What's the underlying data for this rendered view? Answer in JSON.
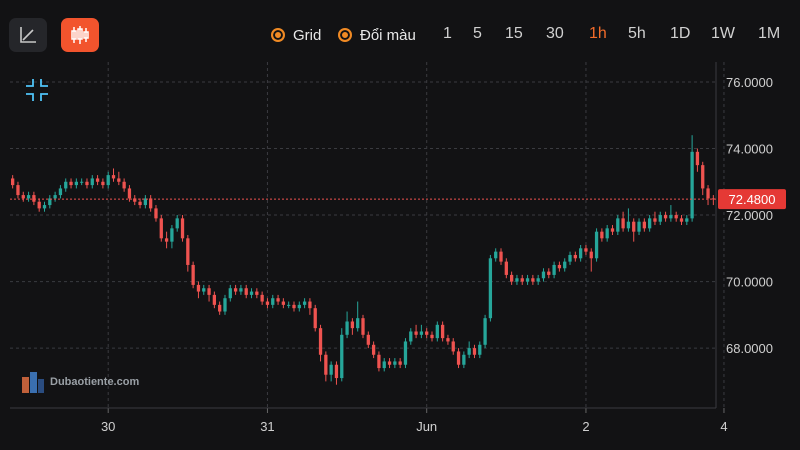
{
  "toolbar": {
    "line_icon": "line-chart-icon",
    "candle_icon": "candlestick-icon",
    "options": [
      {
        "label": "Grid"
      },
      {
        "label": "Đổi màu"
      }
    ],
    "timeframes": [
      "1",
      "5",
      "15",
      "30",
      "1h",
      "5h",
      "1D",
      "1W",
      "1M"
    ],
    "active_timeframe": "1h"
  },
  "watermark": {
    "text": "Dubaotiente.com"
  },
  "colors": {
    "up": "#26a69a",
    "down": "#ef5350",
    "accent": "#f26b2a",
    "grid": "#3a3b40",
    "price_line": "#ef5350"
  },
  "chart_data": {
    "type": "candlestick",
    "y_ticks": [
      "76.0000",
      "74.0000",
      "72.0000",
      "70.0000",
      "68.0000"
    ],
    "y_tick_values": [
      76,
      74,
      72,
      70,
      68
    ],
    "ylim": [
      66.2,
      76.6
    ],
    "x_ticks": [
      "30",
      "31",
      "Jun",
      "2",
      "4"
    ],
    "x_tick_index": [
      18,
      48,
      78,
      108,
      134
    ],
    "current_price": "72.4800",
    "current_price_value": 72.48,
    "grid": true,
    "candles": [
      [
        73.1,
        72.9,
        73.2,
        72.8
      ],
      [
        72.9,
        72.6,
        73.0,
        72.5
      ],
      [
        72.6,
        72.5,
        72.7,
        72.4
      ],
      [
        72.5,
        72.6,
        72.7,
        72.4
      ],
      [
        72.6,
        72.4,
        72.7,
        72.3
      ],
      [
        72.4,
        72.2,
        72.5,
        72.1
      ],
      [
        72.2,
        72.3,
        72.4,
        72.1
      ],
      [
        72.3,
        72.5,
        72.6,
        72.2
      ],
      [
        72.5,
        72.6,
        72.7,
        72.4
      ],
      [
        72.6,
        72.8,
        72.9,
        72.5
      ],
      [
        72.8,
        73.0,
        73.1,
        72.7
      ],
      [
        73.0,
        72.9,
        73.1,
        72.8
      ],
      [
        72.9,
        73.0,
        73.1,
        72.8
      ],
      [
        73.0,
        73.0,
        73.1,
        72.9
      ],
      [
        73.0,
        72.9,
        73.1,
        72.8
      ],
      [
        72.9,
        73.1,
        73.2,
        72.8
      ],
      [
        73.1,
        73.0,
        73.2,
        72.9
      ],
      [
        73.0,
        72.9,
        73.1,
        72.8
      ],
      [
        72.9,
        73.2,
        73.3,
        72.8
      ],
      [
        73.2,
        73.1,
        73.4,
        73.0
      ],
      [
        73.1,
        73.0,
        73.3,
        72.9
      ],
      [
        73.0,
        72.8,
        73.1,
        72.7
      ],
      [
        72.8,
        72.5,
        72.9,
        72.4
      ],
      [
        72.5,
        72.4,
        72.6,
        72.3
      ],
      [
        72.4,
        72.3,
        72.5,
        72.2
      ],
      [
        72.3,
        72.5,
        72.6,
        72.2
      ],
      [
        72.5,
        72.2,
        72.6,
        72.1
      ],
      [
        72.2,
        71.9,
        72.3,
        71.8
      ],
      [
        71.9,
        71.3,
        72.0,
        71.2
      ],
      [
        71.3,
        71.2,
        71.5,
        71.0
      ],
      [
        71.2,
        71.6,
        71.7,
        71.0
      ],
      [
        71.6,
        71.9,
        72.0,
        71.5
      ],
      [
        71.9,
        71.3,
        72.0,
        71.2
      ],
      [
        71.3,
        70.5,
        71.4,
        70.3
      ],
      [
        70.5,
        69.9,
        70.6,
        69.8
      ],
      [
        69.9,
        69.7,
        70.0,
        69.5
      ],
      [
        69.7,
        69.8,
        69.9,
        69.6
      ],
      [
        69.8,
        69.6,
        69.9,
        69.4
      ],
      [
        69.6,
        69.3,
        69.7,
        69.2
      ],
      [
        69.3,
        69.1,
        69.4,
        69.0
      ],
      [
        69.1,
        69.5,
        69.6,
        69.0
      ],
      [
        69.5,
        69.8,
        69.9,
        69.4
      ],
      [
        69.8,
        69.7,
        69.9,
        69.6
      ],
      [
        69.7,
        69.8,
        69.9,
        69.6
      ],
      [
        69.8,
        69.6,
        69.9,
        69.5
      ],
      [
        69.6,
        69.7,
        69.8,
        69.5
      ],
      [
        69.7,
        69.6,
        69.8,
        69.5
      ],
      [
        69.6,
        69.4,
        69.7,
        69.3
      ],
      [
        69.4,
        69.3,
        69.5,
        69.2
      ],
      [
        69.3,
        69.5,
        69.6,
        69.2
      ],
      [
        69.5,
        69.4,
        69.6,
        69.3
      ],
      [
        69.4,
        69.3,
        69.5,
        69.2
      ],
      [
        69.3,
        69.3,
        69.4,
        69.2
      ],
      [
        69.3,
        69.2,
        69.4,
        69.1
      ],
      [
        69.2,
        69.3,
        69.4,
        69.1
      ],
      [
        69.3,
        69.4,
        69.5,
        69.2
      ],
      [
        69.4,
        69.2,
        69.5,
        69.0
      ],
      [
        69.2,
        68.6,
        69.3,
        68.5
      ],
      [
        68.6,
        67.8,
        68.7,
        67.6
      ],
      [
        67.8,
        67.2,
        67.9,
        67.0
      ],
      [
        67.2,
        67.5,
        67.6,
        67.0
      ],
      [
        67.5,
        67.1,
        67.6,
        66.9
      ],
      [
        67.1,
        68.4,
        68.6,
        67.0
      ],
      [
        68.4,
        68.8,
        69.1,
        68.3
      ],
      [
        68.8,
        68.6,
        68.9,
        68.4
      ],
      [
        68.6,
        68.9,
        69.4,
        68.5
      ],
      [
        68.9,
        68.4,
        69.0,
        68.3
      ],
      [
        68.4,
        68.1,
        68.5,
        68.0
      ],
      [
        68.1,
        67.8,
        68.2,
        67.7
      ],
      [
        67.8,
        67.4,
        67.9,
        67.3
      ],
      [
        67.4,
        67.6,
        67.7,
        67.3
      ],
      [
        67.6,
        67.5,
        67.7,
        67.4
      ],
      [
        67.5,
        67.6,
        67.7,
        67.4
      ],
      [
        67.6,
        67.5,
        67.7,
        67.4
      ],
      [
        67.5,
        68.2,
        68.3,
        67.4
      ],
      [
        68.2,
        68.5,
        68.6,
        68.1
      ],
      [
        68.5,
        68.4,
        68.7,
        68.3
      ],
      [
        68.4,
        68.5,
        68.7,
        68.3
      ],
      [
        68.5,
        68.4,
        68.6,
        68.3
      ],
      [
        68.4,
        68.3,
        68.5,
        68.2
      ],
      [
        68.3,
        68.7,
        68.8,
        68.2
      ],
      [
        68.7,
        68.3,
        68.8,
        68.2
      ],
      [
        68.3,
        68.2,
        68.4,
        68.1
      ],
      [
        68.2,
        67.9,
        68.3,
        67.8
      ],
      [
        67.9,
        67.5,
        68.0,
        67.4
      ],
      [
        67.5,
        67.8,
        67.9,
        67.4
      ],
      [
        67.8,
        68.0,
        68.2,
        67.7
      ],
      [
        68.0,
        67.8,
        68.1,
        67.7
      ],
      [
        67.8,
        68.1,
        68.2,
        67.7
      ],
      [
        68.1,
        68.9,
        69.0,
        68.0
      ],
      [
        68.9,
        70.7,
        70.8,
        68.8
      ],
      [
        70.7,
        70.9,
        71.0,
        70.6
      ],
      [
        70.9,
        70.6,
        71.0,
        70.5
      ],
      [
        70.6,
        70.2,
        70.7,
        70.1
      ],
      [
        70.2,
        70.0,
        70.3,
        69.9
      ],
      [
        70.0,
        70.1,
        70.2,
        69.9
      ],
      [
        70.1,
        70.0,
        70.2,
        69.9
      ],
      [
        70.0,
        70.1,
        70.2,
        69.9
      ],
      [
        70.1,
        70.0,
        70.2,
        69.9
      ],
      [
        70.0,
        70.1,
        70.2,
        69.9
      ],
      [
        70.1,
        70.3,
        70.4,
        70.0
      ],
      [
        70.3,
        70.2,
        70.4,
        70.1
      ],
      [
        70.2,
        70.5,
        70.6,
        70.1
      ],
      [
        70.5,
        70.4,
        70.6,
        70.3
      ],
      [
        70.4,
        70.6,
        70.7,
        70.3
      ],
      [
        70.6,
        70.8,
        70.9,
        70.5
      ],
      [
        70.8,
        70.7,
        70.9,
        70.6
      ],
      [
        70.7,
        71.0,
        71.1,
        70.6
      ],
      [
        71.0,
        70.9,
        71.1,
        70.8
      ],
      [
        70.9,
        70.7,
        71.0,
        70.3
      ],
      [
        70.7,
        71.5,
        71.6,
        70.6
      ],
      [
        71.5,
        71.3,
        71.6,
        71.2
      ],
      [
        71.3,
        71.6,
        71.7,
        71.2
      ],
      [
        71.6,
        71.5,
        71.7,
        71.4
      ],
      [
        71.5,
        71.9,
        72.0,
        71.4
      ],
      [
        71.9,
        71.6,
        72.1,
        71.5
      ],
      [
        71.6,
        71.8,
        72.2,
        71.5
      ],
      [
        71.8,
        71.5,
        71.9,
        71.2
      ],
      [
        71.5,
        71.8,
        71.9,
        71.4
      ],
      [
        71.8,
        71.6,
        71.9,
        71.5
      ],
      [
        71.6,
        71.9,
        72.0,
        71.5
      ],
      [
        71.9,
        71.8,
        72.1,
        71.7
      ],
      [
        71.8,
        72.0,
        72.1,
        71.7
      ],
      [
        72.0,
        71.9,
        72.1,
        71.8
      ],
      [
        71.9,
        72.0,
        72.3,
        71.8
      ],
      [
        72.0,
        71.9,
        72.1,
        71.8
      ],
      [
        71.9,
        71.8,
        72.0,
        71.7
      ],
      [
        71.8,
        71.9,
        72.0,
        71.7
      ],
      [
        71.9,
        73.9,
        74.4,
        71.8
      ],
      [
        73.9,
        73.5,
        74.0,
        73.3
      ],
      [
        73.5,
        72.8,
        73.6,
        72.6
      ],
      [
        72.8,
        72.5,
        72.9,
        72.3
      ],
      [
        72.5,
        72.48,
        72.6,
        72.3
      ]
    ]
  }
}
